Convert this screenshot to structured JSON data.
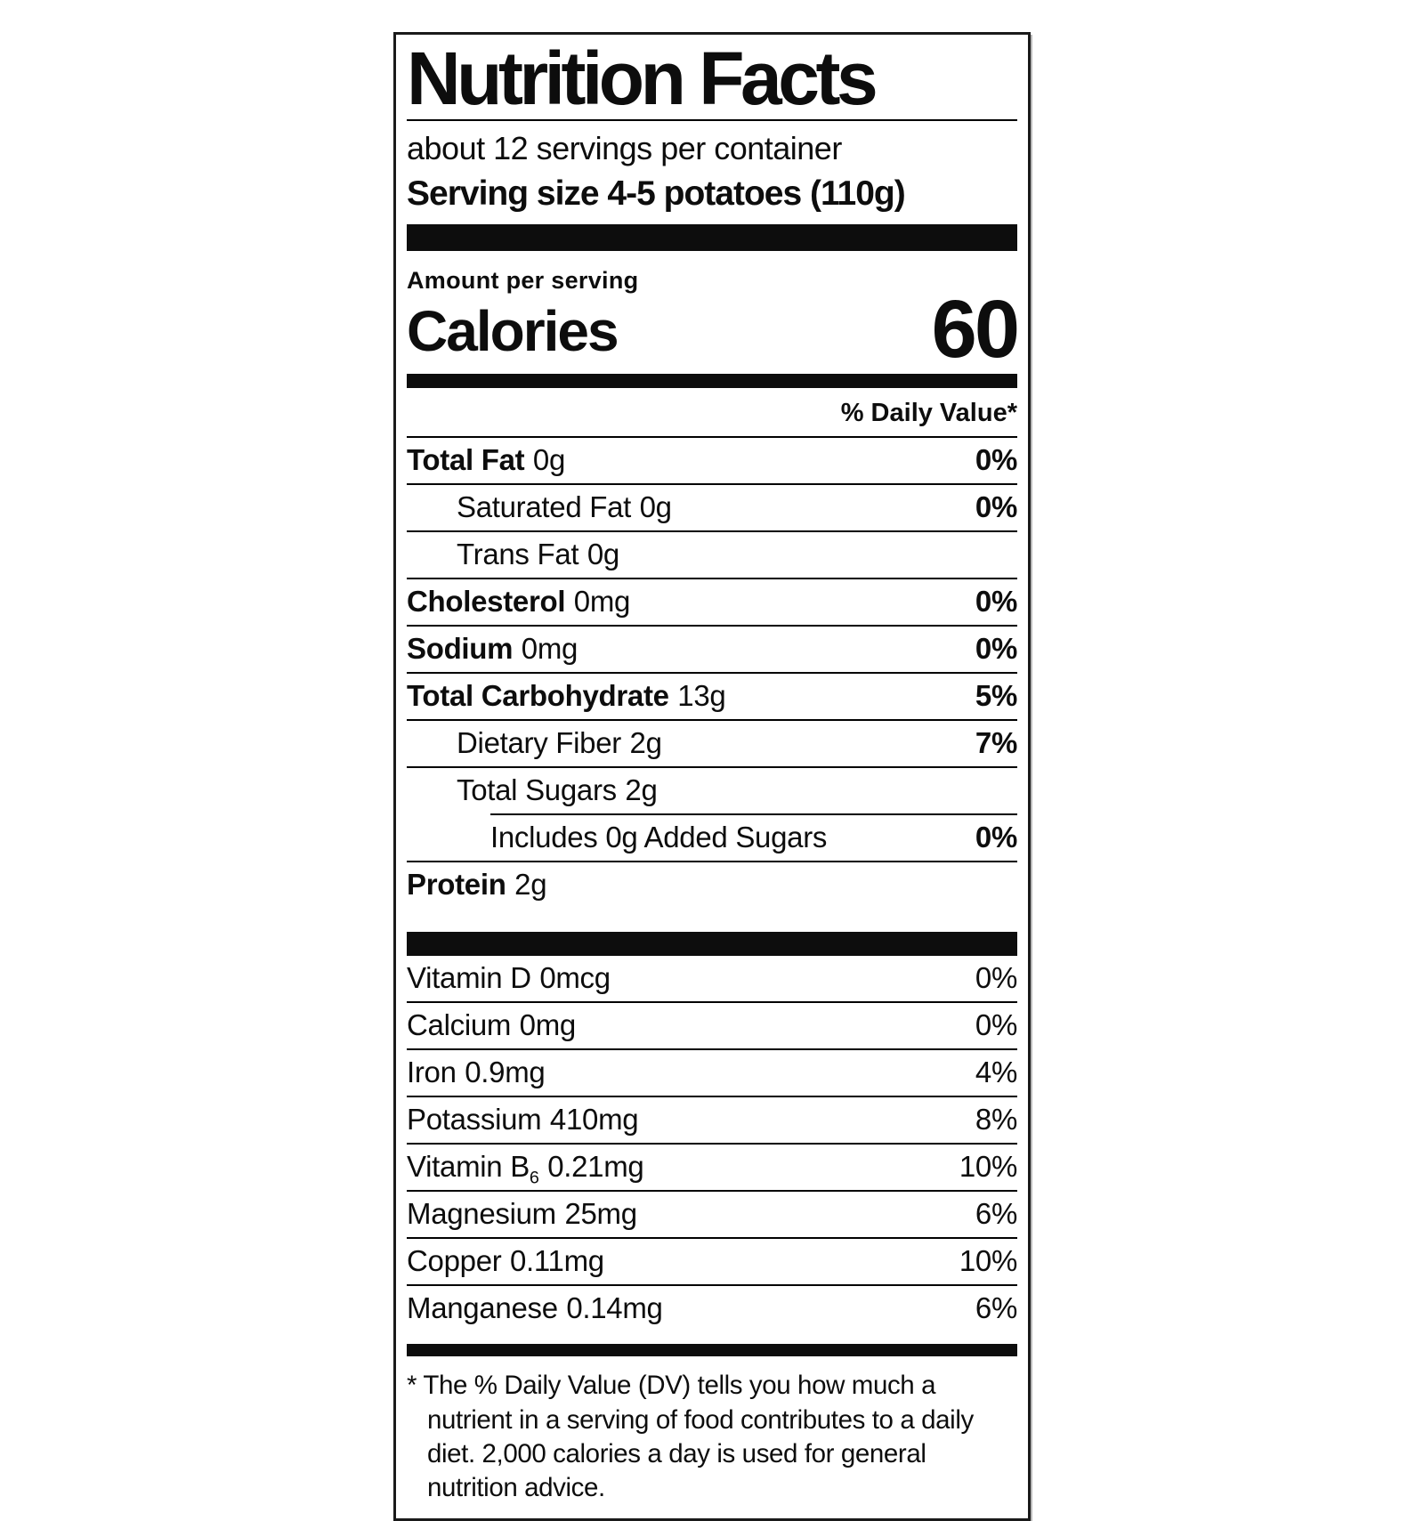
{
  "label": {
    "title": "Nutrition Facts",
    "servings_per_container": "about 12 servings per container",
    "serving_size": "Serving size 4-5 potatoes (110g)",
    "amount_per_serving": "Amount per serving",
    "calories_label": "Calories",
    "calories_value": "60",
    "daily_value_header": "% Daily Value*",
    "rows": [
      {
        "name": "Total Fat",
        "amount": "0g",
        "dv": "0%"
      },
      {
        "name": "Saturated Fat",
        "amount": "0g",
        "dv": "0%"
      },
      {
        "name": "Trans Fat",
        "amount": "0g",
        "dv": ""
      },
      {
        "name": "Cholesterol",
        "amount": "0mg",
        "dv": "0%"
      },
      {
        "name": "Sodium",
        "amount": "0mg",
        "dv": "0%"
      },
      {
        "name": "Total Carbohydrate",
        "amount": "13g",
        "dv": "5%"
      },
      {
        "name": "Dietary Fiber",
        "amount": "2g",
        "dv": "7%"
      },
      {
        "name": "Total Sugars",
        "amount": "2g",
        "dv": ""
      },
      {
        "name": "Includes 0g Added Sugars",
        "amount": "",
        "dv": "0%"
      },
      {
        "name": "Protein",
        "amount": "2g",
        "dv": ""
      }
    ],
    "micros": [
      {
        "name": "Vitamin D",
        "amount": "0mcg",
        "dv": "0%"
      },
      {
        "name": "Calcium",
        "amount": "0mg",
        "dv": "0%"
      },
      {
        "name": "Iron",
        "amount": "0.9mg",
        "dv": "4%"
      },
      {
        "name": "Potassium",
        "amount": "410mg",
        "dv": "8%"
      },
      {
        "name": "Vitamin B",
        "name_sub": "6",
        "amount": "0.21mg",
        "dv": "10%"
      },
      {
        "name": "Magnesium",
        "amount": "25mg",
        "dv": "6%"
      },
      {
        "name": "Copper",
        "amount": "0.11mg",
        "dv": "10%"
      },
      {
        "name": "Manganese",
        "amount": "0.14mg",
        "dv": "6%"
      }
    ],
    "footnote": "* The % Daily Value (DV) tells you how much a nutrient in a serving of food contributes to a daily diet. 2,000 calories a day is used for general nutrition advice."
  }
}
